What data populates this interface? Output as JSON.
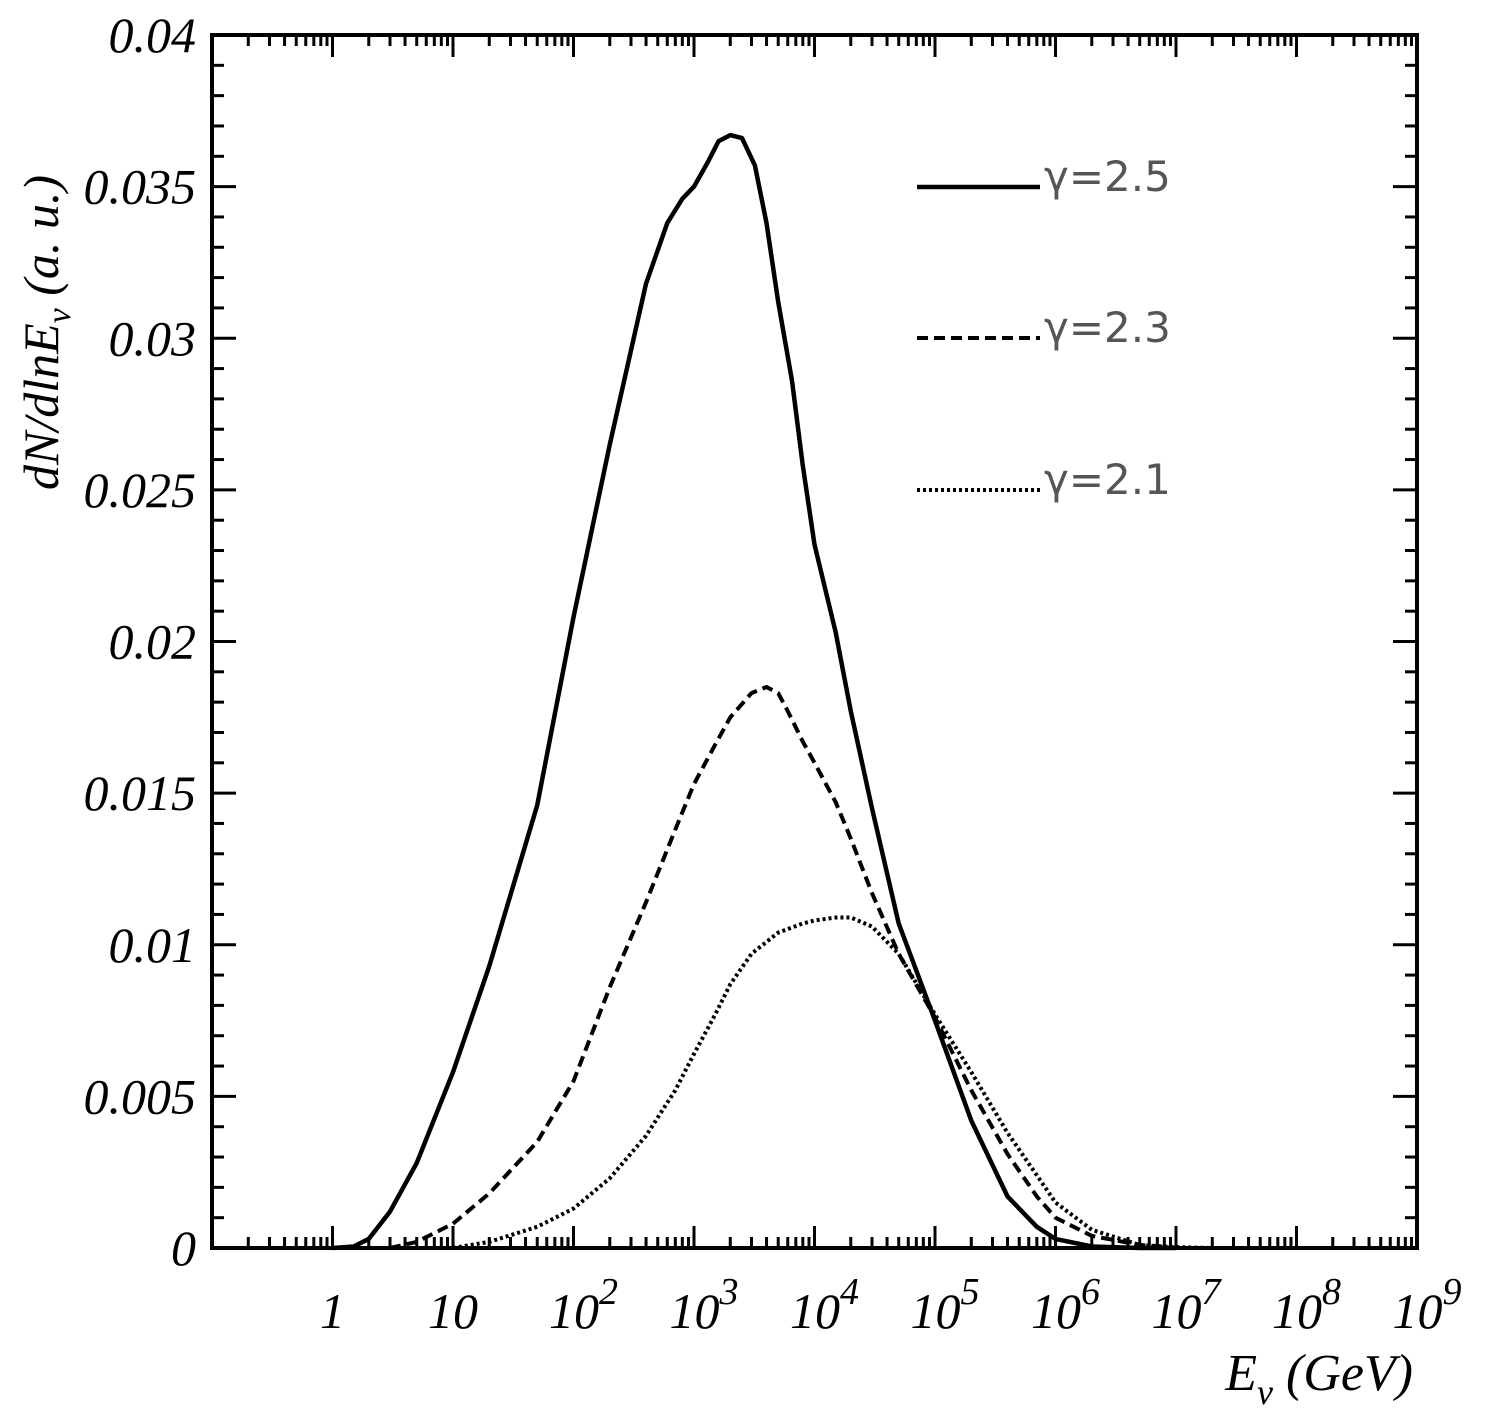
{
  "chart_data": {
    "type": "line",
    "xscale": "log",
    "xlim": [
      0.1,
      1000000000
    ],
    "ylim": [
      0,
      0.04
    ],
    "xlabel": {
      "main": "E",
      "sub": "ν",
      "unit": " (GeV)"
    },
    "ylabel": {
      "main": "dN/dlnE",
      "sub": "ν",
      "unit": " (a. u.)"
    },
    "x_ticks": [
      {
        "value": 1,
        "base": "1",
        "exp": ""
      },
      {
        "value": 10,
        "base": "10",
        "exp": ""
      },
      {
        "value": 100,
        "base": "10",
        "exp": "2"
      },
      {
        "value": 1000,
        "base": "10",
        "exp": "3"
      },
      {
        "value": 10000,
        "base": "10",
        "exp": "4"
      },
      {
        "value": 100000,
        "base": "10",
        "exp": "5"
      },
      {
        "value": 1000000,
        "base": "10",
        "exp": "6"
      },
      {
        "value": 10000000,
        "base": "10",
        "exp": "7"
      },
      {
        "value": 100000000,
        "base": "10",
        "exp": "8"
      },
      {
        "value": 1000000000,
        "base": "10",
        "exp": "9"
      }
    ],
    "y_ticks": [
      {
        "value": 0,
        "label": "0"
      },
      {
        "value": 0.005,
        "label": "0.005"
      },
      {
        "value": 0.01,
        "label": "0.01"
      },
      {
        "value": 0.015,
        "label": "0.015"
      },
      {
        "value": 0.02,
        "label": "0.02"
      },
      {
        "value": 0.025,
        "label": "0.025"
      },
      {
        "value": 0.03,
        "label": "0.03"
      },
      {
        "value": 0.035,
        "label": "0.035"
      },
      {
        "value": 0.04,
        "label": "0.04"
      }
    ],
    "legend_position": "top-right",
    "series": [
      {
        "name": "γ=2.5",
        "style": "solid",
        "color": "#000000",
        "x": [
          1,
          1.5,
          2,
          3,
          5,
          10,
          20,
          50,
          100,
          200,
          400,
          600,
          800,
          1000,
          1300,
          1600,
          2000,
          2500,
          3200,
          4000,
          5000,
          6500,
          8000,
          10000,
          15000,
          20000,
          30000,
          50000,
          100000,
          200000,
          400000,
          700000,
          1000000,
          2000000,
          5000000,
          10000000
        ],
        "y": [
          0,
          5e-05,
          0.0003,
          0.0012,
          0.0028,
          0.0058,
          0.0093,
          0.0146,
          0.0208,
          0.0265,
          0.0318,
          0.0338,
          0.0346,
          0.035,
          0.0358,
          0.0365,
          0.0367,
          0.0366,
          0.0357,
          0.0338,
          0.0312,
          0.0286,
          0.0258,
          0.0232,
          0.0203,
          0.0177,
          0.0145,
          0.0107,
          0.0075,
          0.0042,
          0.0017,
          0.0007,
          0.0003,
          5e-05,
          0,
          0
        ]
      },
      {
        "name": "γ=2.3",
        "style": "dashed",
        "color": "#000000",
        "x": [
          3,
          5,
          10,
          20,
          50,
          100,
          200,
          400,
          700,
          1000,
          1500,
          2000,
          3000,
          4000,
          5000,
          6000,
          8000,
          10000,
          15000,
          20000,
          30000,
          50000,
          100000,
          200000,
          400000,
          700000,
          1000000,
          2000000,
          5000000,
          10000000
        ],
        "y": [
          0,
          0.0002,
          0.0008,
          0.0018,
          0.0035,
          0.0055,
          0.0086,
          0.0114,
          0.0138,
          0.0153,
          0.0166,
          0.0175,
          0.0183,
          0.0185,
          0.0183,
          0.0177,
          0.0167,
          0.016,
          0.0147,
          0.0135,
          0.0117,
          0.0097,
          0.0076,
          0.0052,
          0.0031,
          0.0017,
          0.001,
          0.0004,
          0.0001,
          0
        ]
      },
      {
        "name": "γ=2.1",
        "style": "dotted",
        "color": "#000000",
        "x": [
          10,
          20,
          50,
          100,
          200,
          400,
          700,
          1000,
          1500,
          2000,
          3000,
          5000,
          8000,
          10000,
          15000,
          20000,
          30000,
          50000,
          100000,
          200000,
          400000,
          700000,
          1000000,
          2000000,
          5000000,
          10000000,
          20000000
        ],
        "y": [
          0,
          0.0002,
          0.0007,
          0.0013,
          0.0023,
          0.0037,
          0.0052,
          0.0064,
          0.0077,
          0.0087,
          0.0097,
          0.0104,
          0.0107,
          0.0108,
          0.0109,
          0.0109,
          0.0106,
          0.0097,
          0.0077,
          0.0058,
          0.0038,
          0.0024,
          0.0015,
          0.0006,
          0.0001,
          3e-05,
          0
        ]
      }
    ]
  }
}
